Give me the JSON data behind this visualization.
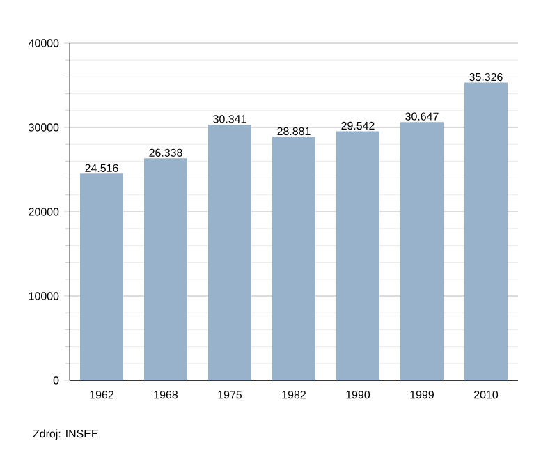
{
  "chart_data": {
    "type": "bar",
    "categories": [
      "1962",
      "1968",
      "1975",
      "1982",
      "1990",
      "1999",
      "2010"
    ],
    "values": [
      24516,
      26338,
      30341,
      28881,
      29542,
      30647,
      35326
    ],
    "value_labels": [
      "24.516",
      "26.338",
      "30.341",
      "28.881",
      "29.542",
      "30.647",
      "35.326"
    ],
    "color": "#98b2cc",
    "ylim": [
      0,
      40000
    ],
    "yticks": [
      0,
      10000,
      20000,
      30000,
      40000
    ],
    "grid": "y",
    "annotations": [
      "Zdroj: INSEE"
    ]
  }
}
